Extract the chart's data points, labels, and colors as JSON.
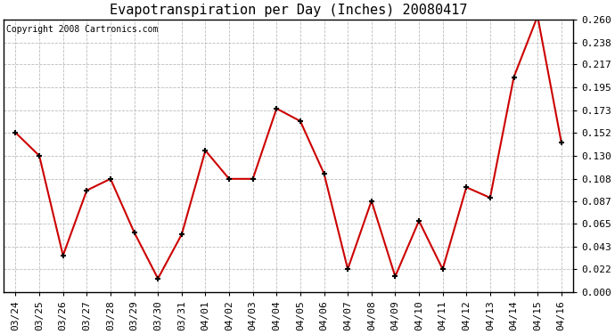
{
  "title": "Evapotranspiration per Day (Inches) 20080417",
  "copyright_text": "Copyright 2008 Cartronics.com",
  "x_labels": [
    "03/24",
    "03/25",
    "03/26",
    "03/27",
    "03/28",
    "03/29",
    "03/30",
    "03/31",
    "04/01",
    "04/02",
    "04/03",
    "04/04",
    "04/05",
    "04/06",
    "04/07",
    "04/08",
    "04/09",
    "04/10",
    "04/11",
    "04/12",
    "04/13",
    "04/14",
    "04/15",
    "04/16"
  ],
  "y_values": [
    0.152,
    0.13,
    0.035,
    0.097,
    0.108,
    0.057,
    0.013,
    0.055,
    0.135,
    0.108,
    0.108,
    0.175,
    0.163,
    0.113,
    0.022,
    0.087,
    0.015,
    0.068,
    0.022,
    0.1,
    0.09,
    0.205,
    0.263,
    0.143
  ],
  "y_ticks": [
    0.0,
    0.022,
    0.043,
    0.065,
    0.087,
    0.108,
    0.13,
    0.152,
    0.173,
    0.195,
    0.217,
    0.238,
    0.26
  ],
  "line_color": "#cc0000",
  "marker": "+",
  "marker_color": "#000000",
  "marker_size": 5,
  "marker_linewidth": 1.5,
  "line_width": 1.5,
  "grid_color": "#bbbbbb",
  "grid_style": "--",
  "bg_color": "#ffffff",
  "plot_bg_color": "#ffffff",
  "title_fontsize": 11,
  "tick_fontsize": 8,
  "copyright_fontsize": 7,
  "figwidth": 6.9,
  "figheight": 3.75,
  "dpi": 100
}
